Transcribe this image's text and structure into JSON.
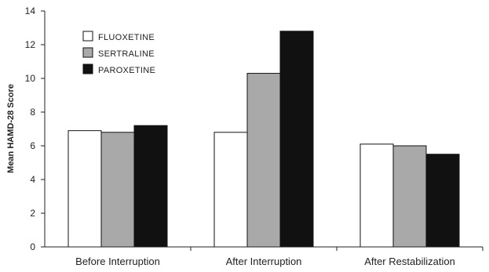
{
  "chart_data": {
    "type": "bar",
    "title": "",
    "xlabel": "",
    "ylabel": "Mean HAMD-28 Score",
    "categories": [
      "Before Interruption",
      "After Interruption",
      "After Restabilization"
    ],
    "series": [
      {
        "name": "FLUOXETINE",
        "values": [
          6.9,
          6.8,
          6.1
        ],
        "color": "#ffffff"
      },
      {
        "name": "SERTRALINE",
        "values": [
          6.8,
          10.3,
          6.0
        ],
        "color": "#a9a9a9"
      },
      {
        "name": "PAROXETINE",
        "values": [
          7.2,
          12.8,
          5.5
        ],
        "color": "#111111"
      }
    ],
    "ylim": [
      0,
      14
    ],
    "yticks": [
      0,
      2,
      4,
      6,
      8,
      10,
      12,
      14
    ],
    "grid": false,
    "legend_position": "top-left"
  }
}
